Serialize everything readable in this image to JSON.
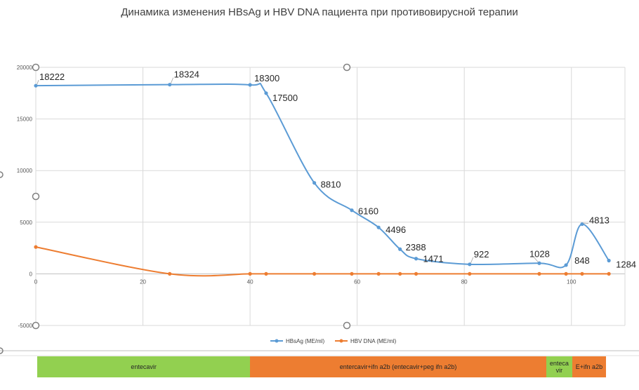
{
  "chart_data": {
    "type": "line",
    "title": "Динамика изменения HBsAg и HBV DNA пациента при противовирусной терапии",
    "xlim": [
      0,
      110
    ],
    "ylim": [
      -5000,
      20000
    ],
    "x_ticks": [
      0,
      20,
      40,
      60,
      80,
      100
    ],
    "y_ticks": [
      -5000,
      0,
      5000,
      10000,
      15000,
      20000
    ],
    "grid": true,
    "legend_position": "bottom",
    "series": [
      {
        "name": "HBsAg (МЕ/ml)",
        "color": "#5b9bd5",
        "points": [
          {
            "x": 0,
            "y": 18222
          },
          {
            "x": 25,
            "y": 18324
          },
          {
            "x": 40,
            "y": 18300
          },
          {
            "x": 43,
            "y": 17500
          },
          {
            "x": 52,
            "y": 8810
          },
          {
            "x": 59,
            "y": 6160
          },
          {
            "x": 64,
            "y": 4496
          },
          {
            "x": 68,
            "y": 2388
          },
          {
            "x": 71,
            "y": 1471
          },
          {
            "x": 81,
            "y": 922
          },
          {
            "x": 94,
            "y": 1028
          },
          {
            "x": 99,
            "y": 848
          },
          {
            "x": 102,
            "y": 4813
          },
          {
            "x": 107,
            "y": 1284
          }
        ]
      },
      {
        "name": "HBV DNA (МЕ/ml)",
        "color": "#ed7d31",
        "points": [
          {
            "x": 0,
            "y": 2600
          },
          {
            "x": 25,
            "y": 0
          },
          {
            "x": 40,
            "y": 0
          },
          {
            "x": 43,
            "y": 0
          },
          {
            "x": 52,
            "y": 0
          },
          {
            "x": 59,
            "y": 0
          },
          {
            "x": 64,
            "y": 0
          },
          {
            "x": 68,
            "y": 0
          },
          {
            "x": 71,
            "y": 0
          },
          {
            "x": 81,
            "y": 0
          },
          {
            "x": 94,
            "y": 0
          },
          {
            "x": 99,
            "y": 0
          },
          {
            "x": 102,
            "y": 0
          },
          {
            "x": 107,
            "y": 0
          }
        ]
      }
    ]
  },
  "therapy_phases": [
    {
      "label": "entecavir",
      "color": "#92d050",
      "x_start": 0,
      "x_end": 41
    },
    {
      "label": "entercavir+ifn a2b (entecavir+peg ifn a2b)",
      "color": "#ed7d31",
      "x_start": 41,
      "x_end": 98
    },
    {
      "label": "enteca vir",
      "color": "#92d050",
      "x_start": 98,
      "x_end": 103
    },
    {
      "label": "E+ifn a2b",
      "color": "#ed7d31",
      "x_start": 103,
      "x_end": 109.5
    }
  ]
}
